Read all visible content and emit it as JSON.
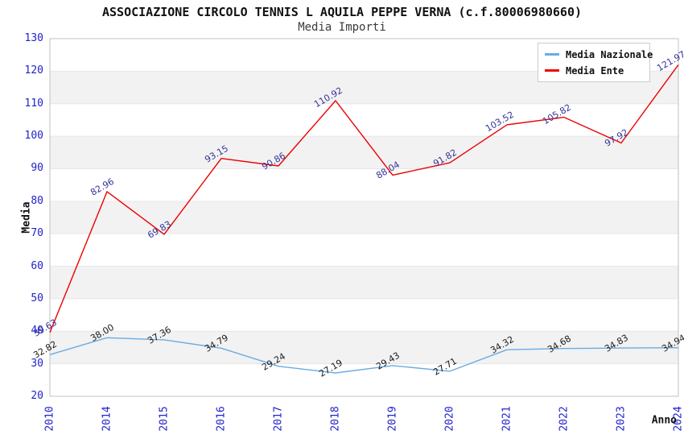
{
  "chart_data": {
    "type": "line",
    "title": "ASSOCIAZIONE CIRCOLO TENNIS L AQUILA PEPPE VERNA (c.f.80006980660)",
    "subtitle": "Media Importi",
    "xlabel": "Anno",
    "ylabel": "Media",
    "ylim": [
      20,
      130
    ],
    "ytick_step": 10,
    "grid": true,
    "legend_position": "top-right",
    "categories": [
      "2010",
      "2014",
      "2015",
      "2016",
      "2017",
      "2018",
      "2019",
      "2020",
      "2021",
      "2022",
      "2023",
      "2024"
    ],
    "series": [
      {
        "name": "Media Nazionale",
        "color": "#6aace4",
        "label_color": "#1a1a1a",
        "values": [
          32.82,
          38.0,
          37.36,
          34.79,
          29.24,
          27.19,
          29.43,
          27.71,
          34.32,
          34.68,
          34.83,
          34.94
        ]
      },
      {
        "name": "Media Ente",
        "color": "#ee0000",
        "label_color": "#333399",
        "values": [
          39.63,
          82.96,
          69.83,
          93.15,
          90.86,
          110.92,
          88.04,
          91.82,
          103.52,
          105.82,
          97.92,
          121.97
        ]
      }
    ],
    "colors": {
      "tick_label": "#2222cc",
      "band": "#f2f2f2",
      "gridline": "#e6e6e6",
      "plot_border": "#c0c0c0",
      "title": "#111111",
      "subtitle": "#3a3a3a"
    }
  }
}
